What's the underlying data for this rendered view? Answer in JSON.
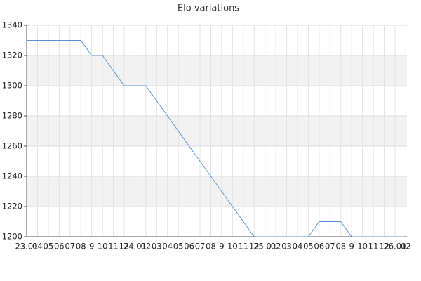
{
  "chart_data": {
    "type": "line",
    "title": "Elo variations",
    "categories": [
      "23.01",
      "04",
      "05",
      "06",
      "07",
      "08",
      "9",
      "10",
      "11",
      "12",
      "24.01",
      "02",
      "03",
      "04",
      "05",
      "06",
      "07",
      "08",
      "9",
      "10",
      "11",
      "12",
      "25.01",
      "02",
      "03",
      "04",
      "05",
      "06",
      "07",
      "08",
      "9",
      "10",
      "11",
      "12",
      "26.01",
      "02"
    ],
    "values": [
      1330,
      1330,
      1330,
      1330,
      1330,
      1330,
      1320,
      1320,
      1310,
      1300,
      1300,
      1300,
      1290,
      1280,
      1270,
      1260,
      1250,
      1240,
      1230,
      1220,
      1210,
      1200,
      1200,
      1200,
      1200,
      1200,
      1200,
      1210,
      1210,
      1210,
      1200,
      1200,
      1200,
      1200,
      1200,
      1200
    ],
    "color": "#5b8fd6",
    "ylim": [
      1200,
      1340
    ],
    "yticks": [
      1200,
      1220,
      1240,
      1260,
      1280,
      1300,
      1320,
      1340
    ],
    "grid": true
  }
}
